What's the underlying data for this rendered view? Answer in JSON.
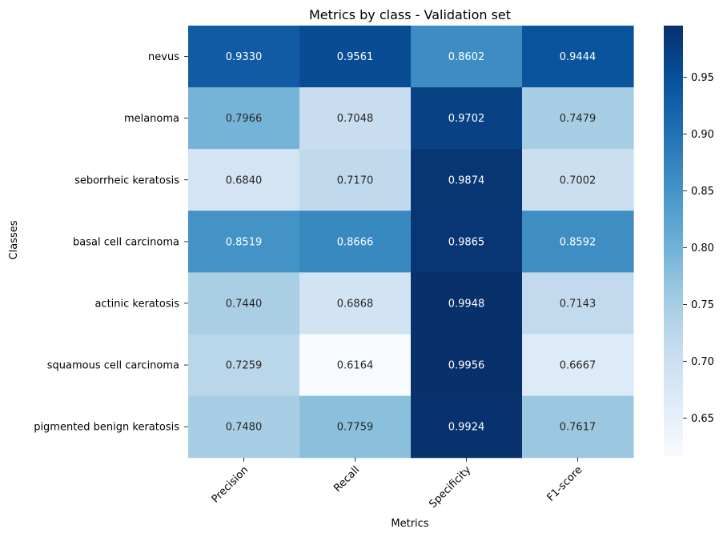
{
  "chart_data": {
    "type": "heatmap",
    "title": "Metrics by class - Validation set",
    "xlabel": "Metrics",
    "ylabel": "Classes",
    "columns": [
      "Precision",
      "Recall",
      "Specificity",
      "F1-score"
    ],
    "rows": [
      "nevus",
      "melanoma",
      "seborrheic keratosis",
      "basal cell carcinoma",
      "actinic keratosis",
      "squamous cell carcinoma",
      "pigmented benign keratosis"
    ],
    "values": [
      [
        0.933,
        0.9561,
        0.8602,
        0.9444
      ],
      [
        0.7966,
        0.7048,
        0.9702,
        0.7479
      ],
      [
        0.684,
        0.717,
        0.9874,
        0.7002
      ],
      [
        0.8519,
        0.8666,
        0.9865,
        0.8592
      ],
      [
        0.744,
        0.6868,
        0.9948,
        0.7143
      ],
      [
        0.7259,
        0.6164,
        0.9956,
        0.6667
      ],
      [
        0.748,
        0.7759,
        0.9924,
        0.7617
      ]
    ],
    "value_labels": [
      [
        "0.9330",
        "0.9561",
        "0.8602",
        "0.9444"
      ],
      [
        "0.7966",
        "0.7048",
        "0.9702",
        "0.7479"
      ],
      [
        "0.6840",
        "0.7170",
        "0.9874",
        "0.7002"
      ],
      [
        "0.8519",
        "0.8666",
        "0.9865",
        "0.8592"
      ],
      [
        "0.7440",
        "0.6868",
        "0.9948",
        "0.7143"
      ],
      [
        "0.7259",
        "0.6164",
        "0.9956",
        "0.6667"
      ],
      [
        "0.7480",
        "0.7759",
        "0.9924",
        "0.7617"
      ]
    ],
    "colormap": "Blues",
    "colormap_stops": [
      "#f7fbff",
      "#deebf7",
      "#c6dbef",
      "#9ecae1",
      "#6baed6",
      "#4292c6",
      "#2171b5",
      "#08519c",
      "#08306b"
    ],
    "vmin": 0.6164,
    "vmax": 0.9956,
    "colorbar_ticks": [
      "0.65",
      "0.70",
      "0.75",
      "0.80",
      "0.85",
      "0.90",
      "0.95"
    ],
    "colorbar_tick_values": [
      0.65,
      0.7,
      0.75,
      0.8,
      0.85,
      0.9,
      0.95
    ],
    "grid": false,
    "x_tick_rotation_deg": 45
  }
}
